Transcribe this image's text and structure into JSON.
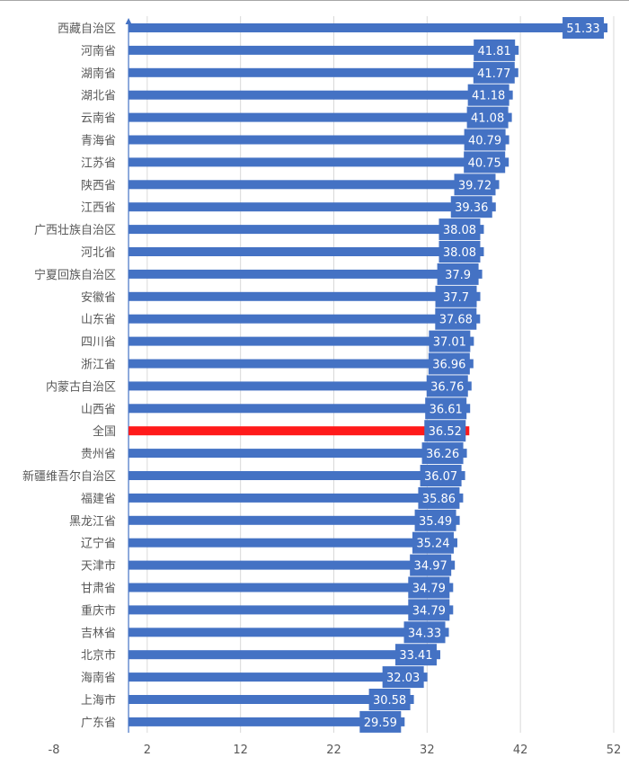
{
  "chart_data": {
    "type": "bar",
    "orientation": "horizontal",
    "categories": [
      "西藏自治区",
      "河南省",
      "湖南省",
      "湖北省",
      "云南省",
      "青海省",
      "江苏省",
      "陕西省",
      "江西省",
      "广西壮族自治区",
      "河北省",
      "宁夏回族自治区",
      "安徽省",
      "山东省",
      "四川省",
      "浙江省",
      "内蒙古自治区",
      "山西省",
      "全国",
      "贵州省",
      "新疆维吾尔自治区",
      "福建省",
      "黑龙江省",
      "辽宁省",
      "天津市",
      "甘肃省",
      "重庆市",
      "吉林省",
      "北京市",
      "海南省",
      "上海市",
      "广东省"
    ],
    "values": [
      51.33,
      41.81,
      41.77,
      41.18,
      41.08,
      40.79,
      40.75,
      39.72,
      39.36,
      38.08,
      38.08,
      37.9,
      37.7,
      37.68,
      37.01,
      36.96,
      36.76,
      36.61,
      36.52,
      36.26,
      36.07,
      35.86,
      35.49,
      35.24,
      34.97,
      34.79,
      34.79,
      34.33,
      33.41,
      32.03,
      30.58,
      29.59
    ],
    "value_labels": [
      "51.33",
      "41.81",
      "41.77",
      "41.18",
      "41.08",
      "40.79",
      "40.75",
      "39.72",
      "39.36",
      "38.08",
      "38.08",
      "37.9",
      "37.7",
      "37.68",
      "37.01",
      "36.96",
      "36.76",
      "36.61",
      "36.52",
      "36.26",
      "36.07",
      "35.86",
      "35.49",
      "35.24",
      "34.97",
      "34.79",
      "34.79",
      "34.33",
      "33.41",
      "32.03",
      "30.58",
      "29.59"
    ],
    "xlim": [
      -8,
      52
    ],
    "xticks": [
      "-8",
      "2",
      "12",
      "22",
      "32",
      "42",
      "52"
    ],
    "grid": true,
    "colors": {
      "default": "#4472c4",
      "highlight": "#ff1a1a",
      "highlight_category": "全国"
    }
  }
}
